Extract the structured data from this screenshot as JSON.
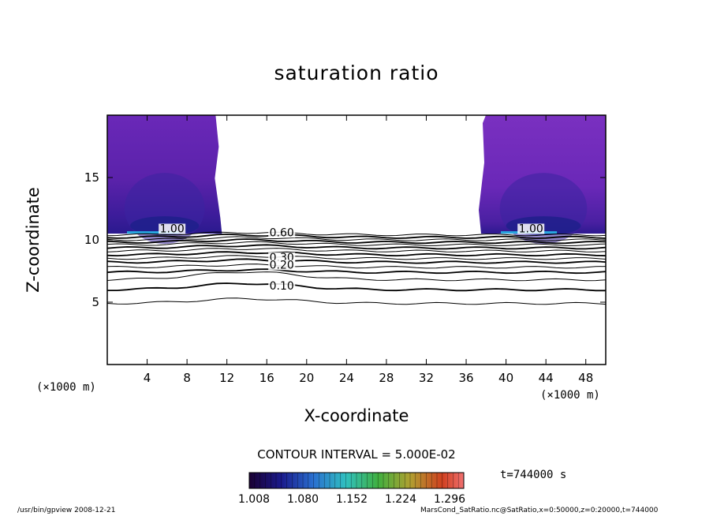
{
  "chart_data": {
    "type": "contour",
    "title": "saturation ratio",
    "xlabel": "X-coordinate",
    "ylabel": "Z-coordinate",
    "x_unit": "(×1000 m)",
    "xlim": [
      0,
      50
    ],
    "ylim": [
      0,
      20
    ],
    "x_ticks": [
      4,
      8,
      12,
      16,
      20,
      24,
      28,
      32,
      36,
      40,
      44,
      48
    ],
    "y_ticks": [
      5,
      10,
      15
    ],
    "contour_labels": [
      {
        "text": "1.00",
        "x": 6.5,
        "y": 10.6
      },
      {
        "text": "1.00",
        "x": 42.5,
        "y": 10.6
      },
      {
        "text": "0.60",
        "x": 17.5,
        "y": 10.3
      },
      {
        "text": "0.30",
        "x": 17.5,
        "y": 8.3
      },
      {
        "text": "0.20",
        "x": 17.5,
        "y": 7.7
      },
      {
        "text": "0.10",
        "x": 17.5,
        "y": 6.0
      }
    ],
    "contour_levels_z": [
      4.9,
      6.0,
      6.8,
      7.4,
      7.8,
      8.2,
      8.5,
      8.8,
      9.1,
      9.35,
      9.6,
      9.8,
      10.0,
      10.2,
      10.4
    ],
    "supersaturated_regions": [
      {
        "x_from": 0,
        "x_to": 11.5,
        "z_from": 10.5,
        "z_to": 20
      },
      {
        "x_from": 37.5,
        "x_to": 50,
        "z_from": 10.5,
        "z_to": 20
      }
    ],
    "contour_interval": "CONTOUR INTERVAL = 5.000E-02",
    "time": "t=744000 s",
    "colorbar_ticks": [
      "1.008",
      "1.080",
      "1.152",
      "1.224",
      "1.296"
    ]
  },
  "footer": {
    "left": "/usr/bin/gpview  2008-12-21",
    "right": "MarsCond_SatRatio.nc@SatRatio,x=0:50000,z=0:20000,t=744000"
  },
  "colors": {
    "fill_dark": "#5a1fa8",
    "fill_mid": "#6e2ab5",
    "fill_light": "#7a30c0",
    "fill_blue": "#3a2aa0",
    "fill_cyan": "#29a8e0"
  }
}
